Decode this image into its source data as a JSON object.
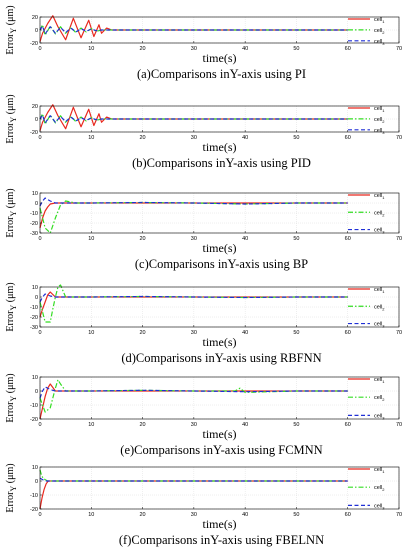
{
  "chart_data": [
    {
      "type": "line",
      "caption": "(a)Comparisons inY-axis using PI",
      "xlabel": "time(s)",
      "ylabel": "Error_Y (μm)",
      "xlim": [
        0,
        70
      ],
      "ylim": [
        -20,
        20
      ],
      "xticks": [
        0,
        10,
        20,
        30,
        40,
        50,
        60,
        70
      ],
      "yticks": [
        -20,
        0,
        20
      ],
      "legend": {
        "position": "right",
        "entries": [
          "cell_1",
          "cell_2",
          "cell_3"
        ]
      },
      "series": [
        {
          "name": "cell_1",
          "color": "#e8281e",
          "dash": "solid",
          "x": [
            0,
            0.5,
            1.5,
            2.5,
            3.5,
            5,
            6.5,
            8,
            9.5,
            10.5,
            11.5,
            12,
            13,
            14,
            60
          ],
          "y": [
            -18,
            -5,
            10,
            22,
            5,
            -15,
            18,
            -12,
            15,
            -10,
            8,
            -5,
            3,
            0,
            0
          ]
        },
        {
          "name": "cell_2",
          "color": "#33dd22",
          "dash": "dashdot",
          "x": [
            0,
            0.5,
            1,
            2,
            3,
            4,
            5,
            6,
            7,
            8,
            9,
            10,
            11,
            12,
            60
          ],
          "y": [
            0,
            8,
            -8,
            6,
            -6,
            5,
            -5,
            4,
            -4,
            3,
            -3,
            2,
            -2,
            0,
            0
          ]
        },
        {
          "name": "cell_3",
          "color": "#1f2fd6",
          "dash": "dashed",
          "x": [
            0,
            0.5,
            1,
            2,
            3,
            4,
            5,
            6,
            7,
            8,
            9,
            10,
            11,
            12,
            60
          ],
          "y": [
            0,
            6,
            -6,
            5,
            -5,
            4,
            -4,
            3,
            -3,
            2,
            -2,
            1.5,
            -1,
            0,
            0
          ]
        }
      ]
    },
    {
      "type": "line",
      "caption": "(b)Comparisons inY-axis using PID",
      "xlabel": "time(s)",
      "ylabel": "Error_Y (μm)",
      "xlim": [
        0,
        70
      ],
      "ylim": [
        -20,
        20
      ],
      "xticks": [
        0,
        10,
        20,
        30,
        40,
        50,
        60,
        70
      ],
      "yticks": [
        -20,
        0,
        20
      ],
      "legend": {
        "position": "right",
        "entries": [
          "cell_1",
          "cell_2",
          "cell_3"
        ]
      },
      "series": [
        {
          "name": "cell_1",
          "color": "#e8281e",
          "dash": "solid",
          "x": [
            0,
            0.5,
            1.5,
            2.5,
            3.5,
            5,
            6.5,
            8,
            9.5,
            10.5,
            11.5,
            12,
            13,
            14,
            60
          ],
          "y": [
            -18,
            -5,
            10,
            22,
            5,
            -15,
            18,
            -12,
            15,
            -10,
            8,
            -5,
            3,
            0,
            0
          ]
        },
        {
          "name": "cell_2",
          "color": "#33dd22",
          "dash": "dashdot",
          "x": [
            0,
            0.5,
            1,
            2,
            3,
            4,
            5,
            6,
            7,
            8,
            9,
            10,
            11,
            12,
            60
          ],
          "y": [
            0,
            8,
            -8,
            6,
            -6,
            5,
            -5,
            4,
            -4,
            3,
            -3,
            2,
            -2,
            0,
            0
          ]
        },
        {
          "name": "cell_3",
          "color": "#1f2fd6",
          "dash": "dashed",
          "x": [
            0,
            0.5,
            1,
            2,
            3,
            4,
            5,
            6,
            7,
            8,
            9,
            10,
            11,
            12,
            60
          ],
          "y": [
            0,
            6,
            -6,
            5,
            -5,
            4,
            -4,
            3,
            -3,
            2,
            -2,
            1.5,
            -1,
            0,
            0
          ]
        }
      ]
    },
    {
      "type": "line",
      "caption": "(c)Comparisons inY-axis using BP",
      "xlabel": "time(s)",
      "ylabel": "Error_Y (μm)",
      "xlim": [
        0,
        70
      ],
      "ylim": [
        -30,
        10
      ],
      "xticks": [
        0,
        10,
        20,
        30,
        40,
        50,
        60,
        70
      ],
      "yticks": [
        -30,
        -20,
        -10,
        0,
        10
      ],
      "legend": {
        "position": "right",
        "entries": [
          "cell_1",
          "cell_2",
          "cell_3"
        ]
      },
      "series": [
        {
          "name": "cell_1",
          "color": "#e8281e",
          "dash": "solid",
          "x": [
            0,
            0.5,
            1,
            1.5,
            2,
            3,
            5,
            60
          ],
          "y": [
            -25,
            -15,
            -8,
            -4,
            -1,
            0,
            0,
            0
          ]
        },
        {
          "name": "cell_2",
          "color": "#33dd22",
          "dash": "dashdot",
          "x": [
            0,
            0.5,
            1,
            2,
            3,
            4,
            5,
            7,
            10,
            20,
            30,
            40,
            50,
            60
          ],
          "y": [
            -5,
            -15,
            -25,
            -30,
            -15,
            -2,
            2,
            0,
            0,
            0.5,
            0,
            -1,
            0,
            0
          ]
        },
        {
          "name": "cell_3",
          "color": "#1f2fd6",
          "dash": "dashed",
          "x": [
            0,
            0.5,
            1,
            2,
            3,
            5,
            10,
            20,
            30,
            40,
            50,
            60
          ],
          "y": [
            -3,
            2,
            5,
            2,
            0,
            0,
            0,
            0.5,
            0,
            -1,
            0,
            0
          ]
        }
      ]
    },
    {
      "type": "line",
      "caption": "(d)Comparisons inY-axis using RBFNN",
      "xlabel": "time(s)",
      "ylabel": "Error_Y (μm)",
      "xlim": [
        0,
        70
      ],
      "ylim": [
        -30,
        10
      ],
      "xticks": [
        0,
        10,
        20,
        30,
        40,
        50,
        60,
        70
      ],
      "yticks": [
        -30,
        -20,
        -10,
        0,
        10
      ],
      "legend": {
        "position": "right",
        "entries": [
          "cell_1",
          "cell_2",
          "cell_3"
        ]
      },
      "series": [
        {
          "name": "cell_1",
          "color": "#e8281e",
          "dash": "solid",
          "x": [
            0,
            0.5,
            1,
            1.5,
            2,
            3,
            5,
            60
          ],
          "y": [
            -20,
            -12,
            -5,
            2,
            5,
            0,
            0,
            0
          ]
        },
        {
          "name": "cell_2",
          "color": "#33dd22",
          "dash": "dashdot",
          "x": [
            0,
            0.5,
            1,
            2,
            2.5,
            3,
            3.5,
            4,
            5,
            10,
            20,
            30,
            40,
            50,
            60
          ],
          "y": [
            -5,
            -15,
            -25,
            -25,
            -12,
            0,
            10,
            12,
            0,
            0,
            0.5,
            0,
            -0.5,
            0,
            0
          ]
        },
        {
          "name": "cell_3",
          "color": "#1f2fd6",
          "dash": "dashed",
          "x": [
            0,
            0.5,
            1,
            2,
            3,
            5,
            10,
            20,
            30,
            40,
            50,
            60
          ],
          "y": [
            -5,
            0,
            3,
            1,
            0,
            0,
            0,
            0.5,
            0,
            -0.5,
            0,
            0
          ]
        }
      ]
    },
    {
      "type": "line",
      "caption": "(e)Comparisons inY-axis using FCMNN",
      "xlabel": "time(s)",
      "ylabel": "Error_Y (μm)",
      "xlim": [
        0,
        70
      ],
      "ylim": [
        -20,
        10
      ],
      "xticks": [
        0,
        10,
        20,
        30,
        40,
        50,
        60,
        70
      ],
      "yticks": [
        -20,
        -10,
        0,
        10
      ],
      "legend": {
        "position": "right",
        "entries": [
          "cell_1",
          "cell_2",
          "cell_3"
        ]
      },
      "series": [
        {
          "name": "cell_1",
          "color": "#e8281e",
          "dash": "solid",
          "x": [
            0,
            0.5,
            1,
            1.5,
            2,
            3,
            5,
            60
          ],
          "y": [
            -20,
            -12,
            -4,
            2,
            5,
            0,
            0,
            0
          ]
        },
        {
          "name": "cell_2",
          "color": "#33dd22",
          "dash": "dashdot",
          "x": [
            0,
            0.5,
            1,
            2,
            2.5,
            3,
            3.5,
            4,
            5,
            10,
            20,
            30,
            38,
            39,
            40,
            50,
            60
          ],
          "y": [
            -5,
            -10,
            -15,
            -12,
            -5,
            2,
            8,
            5,
            0,
            0,
            0.5,
            0,
            0,
            2,
            -1,
            0,
            0
          ]
        },
        {
          "name": "cell_3",
          "color": "#1f2fd6",
          "dash": "dashed",
          "x": [
            0,
            0.5,
            1,
            2,
            3,
            5,
            10,
            20,
            30,
            40,
            50,
            60
          ],
          "y": [
            -5,
            0,
            3,
            1,
            0,
            0,
            0,
            0.5,
            0,
            -0.5,
            0,
            0
          ]
        }
      ]
    },
    {
      "type": "line",
      "caption": "(f)Comparisons inY-axis using FBELNN",
      "xlabel": "time(s)",
      "ylabel": "Error_Y (μm)",
      "xlim": [
        0,
        70
      ],
      "ylim": [
        -20,
        10
      ],
      "xticks": [
        0,
        10,
        20,
        30,
        40,
        50,
        60,
        70
      ],
      "yticks": [
        -20,
        -10,
        0,
        10
      ],
      "legend": {
        "position": "right",
        "entries": [
          "cell_1",
          "cell_2",
          "cell_3"
        ]
      },
      "series": [
        {
          "name": "cell_1",
          "color": "#e8281e",
          "dash": "solid",
          "x": [
            0,
            0.4,
            0.8,
            1.2,
            1.6,
            2,
            60
          ],
          "y": [
            -20,
            -12,
            -6,
            -2,
            0,
            0,
            0
          ]
        },
        {
          "name": "cell_2",
          "color": "#33dd22",
          "dash": "dashdot",
          "x": [
            0,
            0.3,
            0.6,
            1,
            1.5,
            2,
            60
          ],
          "y": [
            8,
            4,
            2,
            1,
            0,
            0,
            0
          ]
        },
        {
          "name": "cell_3",
          "color": "#1f2fd6",
          "dash": "dashed",
          "x": [
            0,
            0.5,
            1,
            2,
            60
          ],
          "y": [
            2,
            1,
            0,
            0,
            0
          ]
        }
      ]
    }
  ]
}
